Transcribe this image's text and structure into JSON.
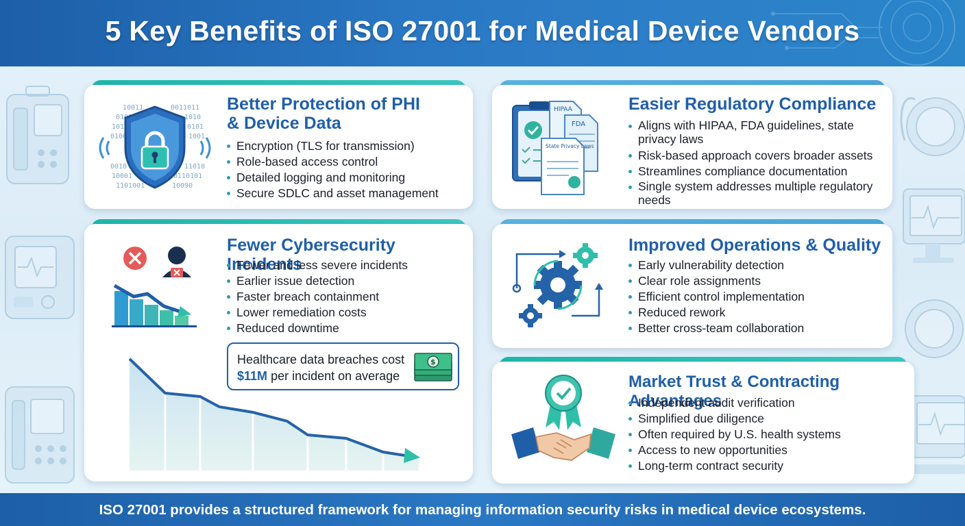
{
  "title": "5 Key Benefits of ISO 27001 for Medical Device Vendors",
  "colors": {
    "header": "#1d5fa8",
    "title_text": "#1f5fa8",
    "accent_teal": "#1fb7a9",
    "accent_blue": "#5bb4e0",
    "bullet": "#2b9bb7"
  },
  "benefits": [
    {
      "title_line1": "Better Protection of PHI",
      "title_line2": "& Device Data",
      "icon": "shield-lock-icon",
      "icon_digits": [
        "10011",
        "0011011",
        "01011",
        "1010",
        "1011",
        "0101",
        "01001",
        "1001",
        "0010",
        "11010",
        "10001",
        "0110101",
        "1101001",
        "10090"
      ],
      "bullets": [
        "Encryption (TLS for transmission)",
        "Role-based access control",
        "Detailed logging and monitoring",
        "Secure SDLC and asset management"
      ]
    },
    {
      "title": "Easier Regulatory Compliance",
      "icon": "compliance-documents-icon",
      "doc_labels": {
        "hipaa": "HIPAA",
        "fda": "FDA",
        "state": "State Privacy Laws"
      },
      "bullets": [
        "Aligns with HIPAA, FDA guidelines, state privacy laws",
        "Risk-based approach covers broader assets",
        "Streamlines compliance documentation",
        "Single system addresses multiple regulatory needs"
      ]
    },
    {
      "title": "Fewer Cybersecurity Incidents",
      "icon": "declining-threats-icon",
      "bullets": [
        "Fewer and less severe incidents",
        "Earlier issue detection",
        "Faster breach containment",
        "Lower remediation costs",
        "Reduced downtime"
      ],
      "callout": {
        "line1": "Healthcare data breaches cost",
        "amount": "$11M",
        "line2": "per incident on average",
        "icon": "money-icon"
      }
    },
    {
      "title": "Improved Operations & Quality",
      "icon": "process-gears-icon",
      "bullets": [
        "Early vulnerability detection",
        "Clear role assignments",
        "Efficient control implementation",
        "Reduced rework",
        "Better cross-team collaboration"
      ]
    },
    {
      "title": "Market Trust & Contracting Advantages",
      "icon": "handshake-badge-icon",
      "bullets": [
        "Independent audit verification",
        "Simplified due diligence",
        "Often required by U.S. health systems",
        "Access to new opportunities",
        "Long-term contract security"
      ]
    }
  ],
  "footer": "ISO 27001 provides a structured framework for managing information security risks in medical device ecosystems."
}
